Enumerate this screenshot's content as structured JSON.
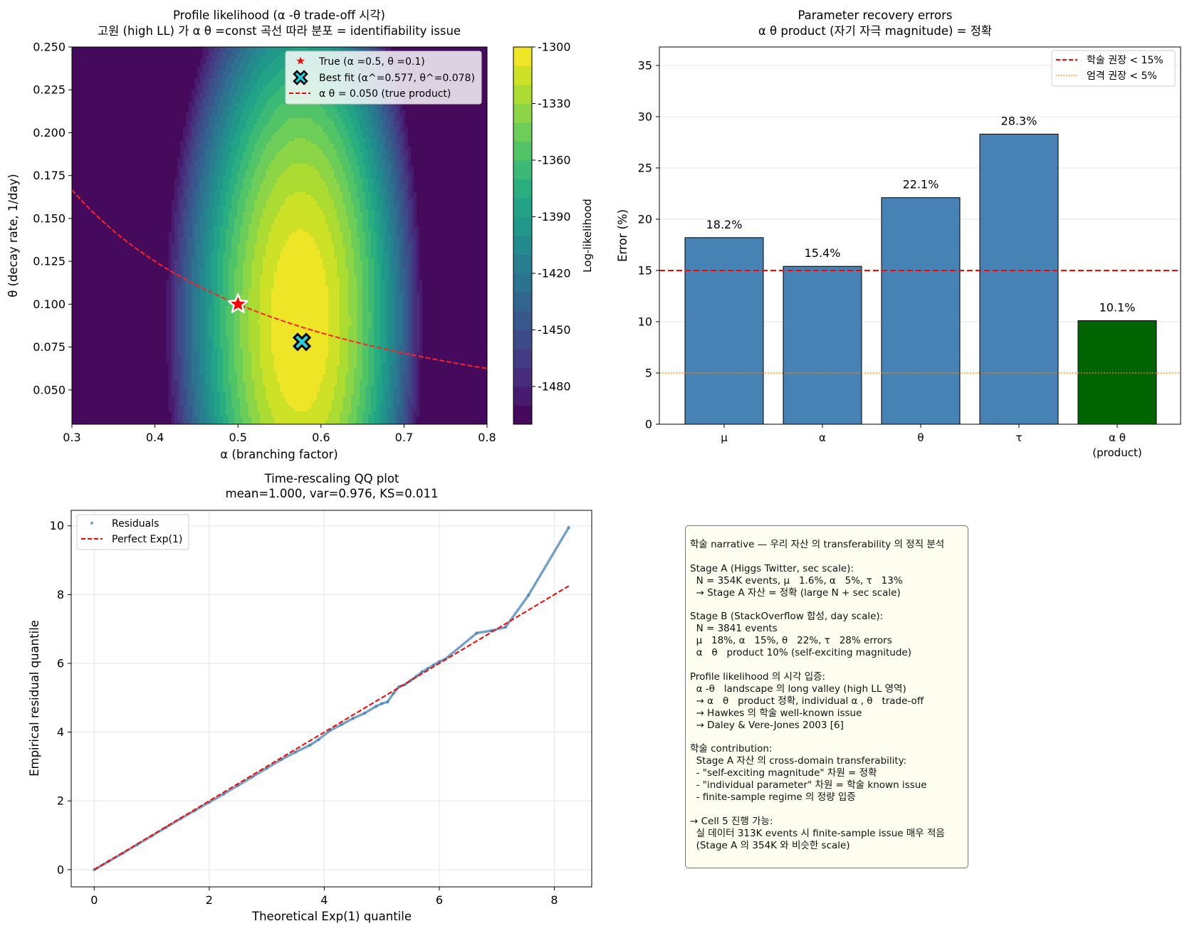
{
  "chart_data": [
    {
      "type": "heatmap",
      "title_line1": "Profile likelihood (α -θ  trade-off 시각)",
      "title_line2": "고원 (high LL) 가 α θ =const 곡선 따라 분포 = identifiability issue",
      "xlabel": "α  (branching factor)",
      "ylabel": "θ  (decay rate, 1/day)",
      "xlim": [
        0.3,
        0.8
      ],
      "ylim": [
        0.03,
        0.25
      ],
      "xticks": [
        "0.3",
        "0.4",
        "0.5",
        "0.6",
        "0.7",
        "0.8"
      ],
      "yticks": [
        "0.050",
        "0.075",
        "0.100",
        "0.125",
        "0.150",
        "0.175",
        "0.200",
        "0.225",
        "0.250"
      ],
      "colormap": "viridis",
      "colorbar_label": "Log-likelihood",
      "colorbar_range": [
        -1500,
        -1300
      ],
      "colorbar_ticks": [
        "-1300",
        "-1330",
        "-1360",
        "-1390",
        "-1420",
        "-1450",
        "-1480"
      ],
      "contour_levels": 20,
      "true_point": {
        "alpha": 0.5,
        "theta": 0.1
      },
      "best_fit_point": {
        "alpha": 0.577,
        "theta": 0.078
      },
      "true_product": 0.05,
      "legend": [
        "True (α =0.5, θ =0.1)",
        "Best fit (α^=0.577, θ^=0.078)",
        "α  θ  = 0.050 (true product)"
      ],
      "legend_position": "upper right"
    },
    {
      "type": "bar",
      "title_line1": "Parameter recovery errors",
      "title_line2": "α  θ  product (자기 자극 magnitude) = 정확",
      "categories": [
        "μ",
        "α",
        "θ",
        "τ",
        "α  θ\n(product)"
      ],
      "values": [
        18.2,
        15.4,
        22.1,
        28.3,
        10.1
      ],
      "value_labels": [
        "18.2%",
        "15.4%",
        "22.1%",
        "28.3%",
        "10.1%"
      ],
      "bar_colors": [
        "#4682b4",
        "#4682b4",
        "#4682b4",
        "#4682b4",
        "#006400"
      ],
      "ylabel": "Error (%)",
      "ylim": [
        0,
        36.8
      ],
      "yticks": [
        "0",
        "5",
        "10",
        "15",
        "20",
        "25",
        "30",
        "35"
      ],
      "grid": "y",
      "reference_lines": [
        {
          "y": 15,
          "label": "학술 권장 < 15%",
          "color": "#ff0000",
          "style": "dashed"
        },
        {
          "y": 5,
          "label": "엄격 권장 < 5%",
          "color": "#ff8c00",
          "style": "dotted"
        }
      ],
      "legend_position": "upper right"
    },
    {
      "type": "scatter",
      "title_line1": "Time-rescaling QQ plot",
      "title_line2": "mean=1.000, var=0.976, KS=0.011",
      "xlabel": "Theoretical Exp(1) quantile",
      "ylabel": "Empirical residual quantile",
      "xlim": [
        -0.4,
        8.65
      ],
      "ylim": [
        -0.5,
        10.45
      ],
      "xticks": [
        "0",
        "2",
        "4",
        "6",
        "8"
      ],
      "yticks": [
        "0",
        "2",
        "4",
        "6",
        "8",
        "10"
      ],
      "grid": "both",
      "series": [
        {
          "name": "Residuals",
          "color": "#4682b4",
          "x": [
            0.0,
            0.25,
            0.5,
            0.75,
            1.0,
            1.25,
            1.5,
            1.75,
            2.0,
            2.25,
            2.5,
            2.75,
            3.0,
            3.25,
            3.5,
            3.75,
            3.9,
            4.1,
            4.3,
            4.5,
            4.7,
            4.9,
            5.0,
            5.1,
            5.2,
            5.3,
            5.4,
            5.5,
            5.6,
            5.7,
            5.8,
            5.9,
            6.0,
            6.1,
            6.65,
            6.9,
            7.15,
            7.55,
            8.25
          ],
          "y": [
            0.0,
            0.24,
            0.48,
            0.73,
            0.98,
            1.23,
            1.48,
            1.72,
            1.96,
            2.2,
            2.45,
            2.7,
            2.95,
            3.2,
            3.42,
            3.62,
            3.78,
            4.05,
            4.22,
            4.4,
            4.55,
            4.75,
            4.83,
            4.88,
            5.12,
            5.32,
            5.38,
            5.5,
            5.62,
            5.75,
            5.85,
            5.95,
            6.05,
            6.12,
            6.88,
            6.95,
            7.05,
            7.98,
            9.95
          ]
        },
        {
          "name": "Perfect Exp(1)",
          "color": "#ff0000",
          "style": "dashed",
          "x": [
            0.0,
            8.25
          ],
          "y": [
            0.0,
            8.25
          ]
        }
      ],
      "legend_position": "upper left"
    }
  ],
  "narrative_text": "학술 narrative — 우리 자산 의 transferability 의 정직 분석\n\nStage A (Higgs Twitter, sec scale):\n  N = 354K events, μ   1.6%, α   5%, τ   13%\n  → Stage A 자산 = 정확 (large N + sec scale)\n\nStage B (StackOverflow 합성, day scale):\n  N = 3841 events\n  μ   18%, α   15%, θ   22%, τ   28% errors\n  α   θ   product 10% (self-exciting magnitude)\n\nProfile likelihood 의 시각 입증:\n  α -θ   landscape 의 long valley (high LL 영역)\n  → α   θ   product 정확, individual α , θ   trade-off\n  → Hawkes 의 학술 well-known issue\n  → Daley & Vere-Jones 2003 [6]\n\n학술 contribution:\n  Stage A 자산 의 cross-domain transferability:\n  - \"self-exciting magnitude\" 차원 = 정확\n  - \"individual parameter\" 차원 = 학술 known issue\n  - finite-sample regime 의 정량 입증\n\n→ Cell 5 진행 가능:\n  실 데이터 313K events 시 finite-sample issue 매우 적음\n  (Stage A 의 354K 와 비슷한 scale)"
}
